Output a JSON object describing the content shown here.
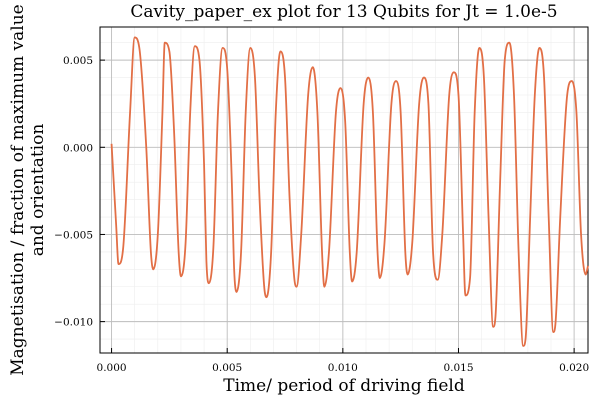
{
  "chart_data": {
    "type": "line",
    "title": "Cavity_paper_ex plot for 13 Qubits for Jt = 1.0e-5",
    "xlabel": "Time/ period of driving field",
    "ylabel": [
      "Magnetisation / fraction of maximum value",
      "and orientation"
    ],
    "xlim": [
      -0.0005,
      0.0206
    ],
    "ylim": [
      -0.0118,
      0.0069
    ],
    "xticks": [
      0.0,
      0.005,
      0.01,
      0.015,
      0.02
    ],
    "xtick_labels": [
      "0.000",
      "0.005",
      "0.010",
      "0.015",
      "0.020"
    ],
    "yticks": [
      -0.01,
      -0.005,
      0.0,
      0.005
    ],
    "ytick_labels": [
      "−0.010",
      "−0.005",
      "0.000",
      "0.005"
    ],
    "grid": true,
    "legend": "none",
    "line_color": "#e26f46",
    "series": [
      {
        "points": [
          [
            0.0,
            0.0002
          ],
          [
            0.0002,
            -0.0045
          ],
          [
            0.0003,
            -0.0067
          ],
          [
            0.0005,
            -0.0058
          ],
          [
            0.0008,
            0.002
          ],
          [
            0.001,
            0.0063
          ],
          [
            0.0012,
            0.0057
          ],
          [
            0.0015,
            0.0
          ],
          [
            0.0017,
            -0.006
          ],
          [
            0.0018,
            -0.007
          ],
          [
            0.002,
            -0.005
          ],
          [
            0.0022,
            0.002
          ],
          [
            0.0023,
            0.006
          ],
          [
            0.0025,
            0.0055
          ],
          [
            0.0027,
            0.001
          ],
          [
            0.0029,
            -0.006
          ],
          [
            0.003,
            -0.0074
          ],
          [
            0.0032,
            -0.0055
          ],
          [
            0.0034,
            0.002
          ],
          [
            0.0036,
            0.0058
          ],
          [
            0.0038,
            0.005
          ],
          [
            0.004,
            -0.001
          ],
          [
            0.0041,
            -0.0065
          ],
          [
            0.0042,
            -0.0078
          ],
          [
            0.0044,
            -0.0058
          ],
          [
            0.0046,
            0.002
          ],
          [
            0.0048,
            0.0057
          ],
          [
            0.005,
            0.0045
          ],
          [
            0.0052,
            -0.002
          ],
          [
            0.0053,
            -0.007
          ],
          [
            0.0054,
            -0.0083
          ],
          [
            0.0056,
            -0.006
          ],
          [
            0.0058,
            0.002
          ],
          [
            0.006,
            0.0057
          ],
          [
            0.0062,
            0.004
          ],
          [
            0.0064,
            -0.003
          ],
          [
            0.0066,
            -0.008
          ],
          [
            0.0067,
            -0.0086
          ],
          [
            0.0069,
            -0.006
          ],
          [
            0.0071,
            0.002
          ],
          [
            0.0073,
            0.0055
          ],
          [
            0.0075,
            0.004
          ],
          [
            0.0077,
            -0.003
          ],
          [
            0.0079,
            -0.0075
          ],
          [
            0.008,
            -0.008
          ],
          [
            0.0082,
            -0.005
          ],
          [
            0.0085,
            0.003
          ],
          [
            0.0087,
            0.0046
          ],
          [
            0.0089,
            0.002
          ],
          [
            0.0091,
            -0.006
          ],
          [
            0.0092,
            -0.008
          ],
          [
            0.0094,
            -0.006
          ],
          [
            0.0097,
            0.002
          ],
          [
            0.0099,
            0.0034
          ],
          [
            0.0101,
            0.0015
          ],
          [
            0.0103,
            -0.006
          ],
          [
            0.0104,
            -0.0077
          ],
          [
            0.0106,
            -0.006
          ],
          [
            0.0109,
            0.0025
          ],
          [
            0.0111,
            0.004
          ],
          [
            0.0113,
            0.002
          ],
          [
            0.0115,
            -0.006
          ],
          [
            0.0116,
            -0.0075
          ],
          [
            0.0118,
            -0.0055
          ],
          [
            0.0121,
            0.0025
          ],
          [
            0.0123,
            0.0038
          ],
          [
            0.0125,
            0.002
          ],
          [
            0.0127,
            -0.006
          ],
          [
            0.0128,
            -0.0073
          ],
          [
            0.013,
            -0.0055
          ],
          [
            0.0133,
            0.0025
          ],
          [
            0.0135,
            0.004
          ],
          [
            0.0137,
            0.0025
          ],
          [
            0.0139,
            -0.006
          ],
          [
            0.0141,
            -0.0076
          ],
          [
            0.0143,
            -0.005
          ],
          [
            0.0146,
            0.003
          ],
          [
            0.0148,
            0.0043
          ],
          [
            0.015,
            0.003
          ],
          [
            0.0152,
            -0.005
          ],
          [
            0.0153,
            -0.0085
          ],
          [
            0.0155,
            -0.0075
          ],
          [
            0.0157,
            0.002
          ],
          [
            0.0159,
            0.0057
          ],
          [
            0.0161,
            0.004
          ],
          [
            0.0163,
            -0.004
          ],
          [
            0.0165,
            -0.0103
          ],
          [
            0.0166,
            -0.0097
          ],
          [
            0.0168,
            -0.002
          ],
          [
            0.017,
            0.005
          ],
          [
            0.0172,
            0.006
          ],
          [
            0.0174,
            0.003
          ],
          [
            0.0176,
            -0.006
          ],
          [
            0.0178,
            -0.0114
          ],
          [
            0.0179,
            -0.011
          ],
          [
            0.0181,
            -0.004
          ],
          [
            0.0183,
            0.003
          ],
          [
            0.0185,
            0.0057
          ],
          [
            0.0187,
            0.004
          ],
          [
            0.0189,
            -0.004
          ],
          [
            0.0191,
            -0.0106
          ],
          [
            0.0192,
            -0.01
          ],
          [
            0.0194,
            -0.004
          ],
          [
            0.0197,
            0.003
          ],
          [
            0.0199,
            0.0038
          ],
          [
            0.0201,
            0.002
          ],
          [
            0.0203,
            -0.005
          ],
          [
            0.0205,
            -0.0073
          ],
          [
            0.0206,
            -0.0068
          ]
        ]
      }
    ]
  }
}
